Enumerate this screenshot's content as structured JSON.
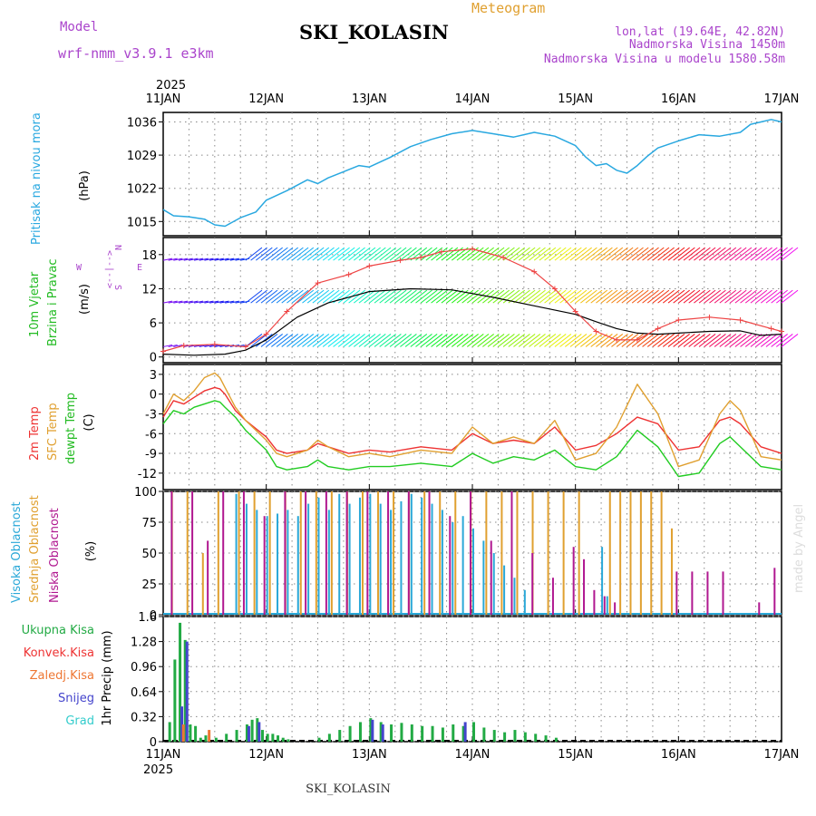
{
  "header": {
    "model_label": "Model",
    "model_name": "wrf-nmm_v3.9.1 e3km",
    "title": "SKI_KOLASIN",
    "subtitle": "Meteogram",
    "coords": "lon,lat (19.64E, 42.82N)",
    "altitude": "Nadmorska Visina 1450m",
    "model_altitude": "Nadmorska Visina u modelu 1580.58m",
    "credit": "made by Angel",
    "footer": "SKI_KOLASIN",
    "year_top": "2025",
    "year_bottom": "2025"
  },
  "colors": {
    "pressure": "#29a8e0",
    "wind_label": "#22bb22",
    "temp2m": "#ee3333",
    "sfc": "#e0a030",
    "dewpt": "#22cc22",
    "high_cloud": "#2aa8d8",
    "mid_cloud": "#e0a030",
    "low_cloud": "#b01890",
    "total_precip": "#22aa44",
    "conv_precip": "#ee3333",
    "frozen_precip": "#ee7733",
    "snow": "#4444cc",
    "hail": "#33cccc",
    "gust": "#ee4444",
    "wind_speed": "#000000",
    "compass": "#aa44cc"
  },
  "chart_data": [
    {
      "type": "line",
      "panel": "pressure",
      "title": "Pritisak na nivou mora",
      "ylabel": "(hPa)",
      "ylim": [
        1012,
        1038
      ],
      "yticks": [
        1015,
        1022,
        1029,
        1036
      ],
      "x_days": [
        0,
        0.1,
        0.25,
        0.4,
        0.5,
        0.6,
        0.75,
        0.9,
        1.0,
        1.2,
        1.4,
        1.5,
        1.6,
        1.75,
        1.9,
        2.0,
        2.2,
        2.4,
        2.6,
        2.8,
        3.0,
        3.2,
        3.4,
        3.6,
        3.8,
        4.0,
        4.1,
        4.2,
        4.3,
        4.4,
        4.5,
        4.6,
        4.7,
        4.8,
        5.0,
        5.2,
        5.4,
        5.6,
        5.7,
        5.8,
        5.9,
        6.0
      ],
      "values": [
        1017.5,
        1016.2,
        1016.0,
        1015.5,
        1014.3,
        1014.0,
        1015.8,
        1017.0,
        1019.5,
        1021.5,
        1023.8,
        1023.0,
        1024.2,
        1025.5,
        1026.8,
        1026.5,
        1028.5,
        1030.8,
        1032.3,
        1033.5,
        1034.2,
        1033.5,
        1032.8,
        1033.8,
        1033.0,
        1031.0,
        1028.6,
        1026.8,
        1027.2,
        1025.8,
        1025.2,
        1026.8,
        1028.8,
        1030.5,
        1032.0,
        1033.3,
        1033.0,
        1033.8,
        1035.5,
        1036.0,
        1036.5,
        1036.0
      ]
    },
    {
      "type": "line",
      "panel": "wind",
      "title": "10m Vjetar",
      "title2": "Brzina i Pravac",
      "ylabel": "(m/s)",
      "compass": [
        "N",
        "<--|-->",
        "W",
        "E",
        "S"
      ],
      "ylim": [
        -1,
        21
      ],
      "yticks": [
        0,
        6,
        12,
        18
      ],
      "series": [
        {
          "name": "wind speed",
          "x_days": [
            0,
            0.3,
            0.6,
            0.8,
            1.0,
            1.3,
            1.6,
            1.8,
            2.0,
            2.4,
            2.8,
            3.2,
            3.6,
            4.0,
            4.2,
            4.4,
            4.6,
            4.8,
            5.0,
            5.3,
            5.6,
            5.8,
            6.0
          ],
          "values": [
            0.5,
            0.3,
            0.5,
            1.2,
            3.0,
            7.0,
            9.5,
            10.5,
            11.5,
            12.0,
            11.8,
            10.5,
            9.0,
            7.5,
            6.2,
            5.0,
            4.2,
            4.0,
            4.2,
            4.5,
            4.6,
            3.8,
            4.0
          ]
        },
        {
          "name": "wind gust",
          "x_days": [
            0,
            0.2,
            0.5,
            0.8,
            1.0,
            1.2,
            1.5,
            1.8,
            2.0,
            2.3,
            2.5,
            2.7,
            3.0,
            3.3,
            3.6,
            3.8,
            4.0,
            4.2,
            4.4,
            4.6,
            4.8,
            5.0,
            5.3,
            5.6,
            5.9,
            6.0
          ],
          "values": [
            1.0,
            2.0,
            2.2,
            1.8,
            4.0,
            8.0,
            13.0,
            14.5,
            16.0,
            17.0,
            17.5,
            18.5,
            19.0,
            17.5,
            15.0,
            12.0,
            8.0,
            4.5,
            3.0,
            3.0,
            5.0,
            6.5,
            7.0,
            6.5,
            5.0,
            4.5
          ]
        }
      ]
    },
    {
      "type": "line",
      "panel": "temperature",
      "title": "2m Temp",
      "title2": "SFC Temp",
      "title3": "dewpt Temp",
      "ylabel": "(C)",
      "ylim": [
        -14.5,
        4.5
      ],
      "yticks": [
        3,
        0,
        -3,
        -6,
        -9,
        -12
      ],
      "series": [
        {
          "name": "2m Temp",
          "x_days": [
            0,
            0.1,
            0.2,
            0.3,
            0.4,
            0.5,
            0.55,
            0.6,
            0.7,
            0.8,
            1.0,
            1.1,
            1.2,
            1.4,
            1.5,
            1.6,
            1.8,
            2.0,
            2.2,
            2.5,
            2.8,
            3.0,
            3.2,
            3.4,
            3.6,
            3.8,
            4.0,
            4.2,
            4.4,
            4.6,
            4.8,
            5.0,
            5.2,
            5.4,
            5.5,
            5.6,
            5.8,
            6.0
          ],
          "values": [
            -3.5,
            -1.0,
            -1.5,
            -0.5,
            0.5,
            1.0,
            0.8,
            0.0,
            -2.5,
            -4.0,
            -6.5,
            -8.5,
            -9.0,
            -8.5,
            -7.5,
            -8.0,
            -9.0,
            -8.5,
            -8.8,
            -8.0,
            -8.5,
            -6.0,
            -7.5,
            -7.0,
            -7.5,
            -5.0,
            -8.5,
            -7.8,
            -6.0,
            -3.5,
            -4.5,
            -8.5,
            -8.0,
            -4.0,
            -3.5,
            -4.5,
            -8.0,
            -9.0
          ]
        },
        {
          "name": "SFC Temp",
          "x_days": [
            0,
            0.1,
            0.2,
            0.3,
            0.4,
            0.5,
            0.55,
            0.6,
            0.7,
            0.8,
            1.0,
            1.1,
            1.2,
            1.4,
            1.5,
            1.6,
            1.8,
            2.0,
            2.2,
            2.5,
            2.8,
            3.0,
            3.2,
            3.4,
            3.6,
            3.8,
            4.0,
            4.2,
            4.4,
            4.6,
            4.8,
            5.0,
            5.2,
            5.4,
            5.5,
            5.6,
            5.8,
            6.0
          ],
          "values": [
            -3.0,
            0.0,
            -1.0,
            0.5,
            2.5,
            3.2,
            2.5,
            1.0,
            -2.0,
            -4.0,
            -7.0,
            -9.0,
            -9.5,
            -8.5,
            -7.0,
            -8.0,
            -9.5,
            -9.0,
            -9.5,
            -8.5,
            -9.0,
            -5.0,
            -7.5,
            -6.5,
            -7.5,
            -4.0,
            -10.0,
            -9.0,
            -5.0,
            1.5,
            -3.0,
            -11.0,
            -10.0,
            -3.0,
            -1.0,
            -2.5,
            -9.5,
            -10.0
          ]
        },
        {
          "name": "dewpt Temp",
          "x_days": [
            0,
            0.1,
            0.2,
            0.3,
            0.4,
            0.5,
            0.55,
            0.6,
            0.7,
            0.8,
            1.0,
            1.1,
            1.2,
            1.4,
            1.5,
            1.6,
            1.8,
            2.0,
            2.2,
            2.5,
            2.8,
            3.0,
            3.2,
            3.4,
            3.6,
            3.8,
            4.0,
            4.2,
            4.4,
            4.6,
            4.8,
            5.0,
            5.2,
            5.4,
            5.5,
            5.6,
            5.8,
            6.0
          ],
          "values": [
            -4.5,
            -2.5,
            -3.0,
            -2.0,
            -1.5,
            -1.0,
            -1.2,
            -2.0,
            -3.5,
            -5.5,
            -8.5,
            -11.0,
            -11.5,
            -11.0,
            -10.0,
            -11.0,
            -11.5,
            -11.0,
            -11.0,
            -10.5,
            -11.0,
            -9.0,
            -10.5,
            -9.5,
            -10.0,
            -8.5,
            -11.0,
            -11.5,
            -9.5,
            -5.5,
            -8.0,
            -12.5,
            -12.0,
            -7.5,
            -6.5,
            -8.0,
            -11.0,
            -11.5
          ]
        }
      ]
    },
    {
      "type": "bar",
      "panel": "cloud",
      "title": "Visoka Oblacnost",
      "title2": "Srednja Oblacnost",
      "title3": "Niska Oblacnost",
      "ylabel": "(%)",
      "ylim": [
        0,
        100
      ],
      "yticks": [
        0,
        25,
        50,
        75,
        100
      ],
      "series": [
        {
          "name": "Visoka Oblacnost",
          "x_days": [
            0.7,
            0.8,
            0.9,
            1.0,
            1.1,
            1.2,
            1.3,
            1.4,
            1.5,
            1.6,
            1.7,
            1.8,
            1.9,
            2.0,
            2.1,
            2.2,
            2.3,
            2.4,
            2.5,
            2.6,
            2.7,
            2.8,
            2.9,
            3.0,
            3.1,
            3.2,
            3.3,
            3.4,
            3.5,
            4.25,
            4.3
          ],
          "values": [
            98,
            90,
            85,
            80,
            82,
            85,
            80,
            90,
            95,
            85,
            98,
            90,
            95,
            98,
            90,
            85,
            92,
            98,
            95,
            90,
            85,
            75,
            80,
            70,
            60,
            50,
            40,
            30,
            20,
            55,
            15
          ]
        },
        {
          "name": "Srednja Oblacnost",
          "x_days": [
            0.05,
            0.2,
            0.35,
            0.5,
            0.7,
            0.85,
            1.0,
            1.15,
            1.3,
            1.45,
            1.6,
            1.75,
            1.9,
            2.05,
            2.2,
            2.35,
            2.5,
            2.65,
            2.8,
            2.95,
            3.1,
            3.25,
            3.4,
            3.55,
            3.7,
            3.85,
            4.0,
            4.3,
            4.4,
            4.5,
            4.6,
            4.7,
            4.8,
            4.9
          ],
          "values": [
            100,
            100,
            50,
            100,
            100,
            100,
            100,
            100,
            100,
            100,
            100,
            100,
            100,
            100,
            100,
            100,
            100,
            100,
            100,
            100,
            100,
            100,
            100,
            100,
            100,
            100,
            100,
            100,
            100,
            100,
            100,
            100,
            100,
            70
          ]
        },
        {
          "name": "Niska Oblacnost",
          "x_days": [
            0.1,
            0.3,
            0.45,
            0.6,
            0.8,
            1.0,
            1.2,
            1.4,
            1.6,
            1.8,
            2.0,
            2.2,
            2.4,
            2.6,
            2.8,
            3.0,
            3.2,
            3.4,
            3.6,
            3.8,
            4.0,
            4.1,
            4.2,
            4.3,
            4.4,
            5.0,
            5.15,
            5.3,
            5.45,
            5.8,
            5.95
          ],
          "values": [
            100,
            100,
            60,
            100,
            100,
            80,
            100,
            100,
            100,
            100,
            100,
            100,
            100,
            100,
            80,
            100,
            60,
            100,
            50,
            30,
            55,
            45,
            20,
            15,
            10,
            35,
            35,
            35,
            35,
            10,
            38
          ]
        }
      ]
    },
    {
      "type": "bar",
      "panel": "precip",
      "ylabel": "1hr Precip (mm)",
      "legend": [
        "Ukupna Kisa",
        "Konvek.Kisa",
        "Zaledj.Kisa",
        "Snijeg",
        "Grad"
      ],
      "ylim": [
        0,
        1.6
      ],
      "yticks": [
        0,
        0.32,
        0.64,
        0.96,
        1.28,
        1.6
      ],
      "series": [
        {
          "name": "Ukupna Kisa",
          "x_days": [
            0.05,
            0.1,
            0.15,
            0.2,
            0.25,
            0.3,
            0.35,
            0.4,
            0.5,
            0.6,
            0.7,
            0.8,
            0.85,
            0.9,
            0.95,
            1.0,
            1.05,
            1.1,
            1.15,
            1.2,
            1.5,
            1.6,
            1.7,
            1.8,
            1.9,
            2.0,
            2.1,
            2.2,
            2.3,
            2.4,
            2.5,
            2.6,
            2.7,
            2.8,
            2.9,
            3.0,
            3.1,
            3.2,
            3.3,
            3.4,
            3.5,
            3.6,
            3.7,
            3.8
          ],
          "values": [
            0.25,
            1.05,
            1.52,
            1.3,
            0.22,
            0.2,
            0.05,
            0.08,
            0.05,
            0.1,
            0.15,
            0.22,
            0.28,
            0.3,
            0.15,
            0.1,
            0.1,
            0.08,
            0.05,
            0.03,
            0.05,
            0.1,
            0.15,
            0.2,
            0.25,
            0.3,
            0.25,
            0.22,
            0.24,
            0.22,
            0.2,
            0.2,
            0.18,
            0.22,
            0.2,
            0.25,
            0.18,
            0.15,
            0.12,
            0.15,
            0.12,
            0.1,
            0.08,
            0.05
          ]
        },
        {
          "name": "Snijeg",
          "x_days": [
            0.15,
            0.2,
            0.8,
            0.9,
            2.0,
            2.1,
            2.9
          ],
          "values": [
            0.45,
            1.28,
            0.2,
            0.25,
            0.28,
            0.22,
            0.25
          ]
        },
        {
          "name": "Zaledj.Kisa",
          "x_days": [
            0.2,
            0.45
          ],
          "values": [
            0.22,
            0.15
          ]
        }
      ]
    }
  ],
  "x_axis": {
    "labels": [
      "11JAN",
      "12JAN",
      "13JAN",
      "14JAN",
      "15JAN",
      "16JAN",
      "17JAN"
    ]
  }
}
